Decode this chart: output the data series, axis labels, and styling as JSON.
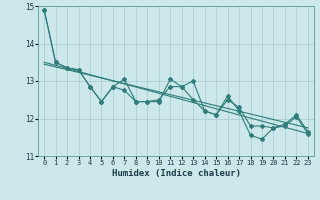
{
  "xlabel": "Humidex (Indice chaleur)",
  "xlim": [
    -0.5,
    23.5
  ],
  "ylim": [
    11,
    15
  ],
  "yticks": [
    11,
    12,
    13,
    14,
    15
  ],
  "xticks": [
    0,
    1,
    2,
    3,
    4,
    5,
    6,
    7,
    8,
    9,
    10,
    11,
    12,
    13,
    14,
    15,
    16,
    17,
    18,
    19,
    20,
    21,
    22,
    23
  ],
  "bg_color": "#cce8ea",
  "grid_color": "#aad0d4",
  "line_color": "#2e7d7a",
  "series1": [
    14.9,
    13.5,
    13.35,
    13.3,
    12.85,
    12.45,
    12.85,
    12.75,
    12.45,
    12.45,
    12.45,
    13.05,
    12.85,
    13.0,
    12.2,
    12.1,
    12.6,
    12.2,
    11.55,
    11.45,
    11.75,
    11.8,
    12.05,
    11.6
  ],
  "series2": [
    14.9,
    13.5,
    13.35,
    13.3,
    12.85,
    12.45,
    12.85,
    13.05,
    12.45,
    12.45,
    12.5,
    12.85,
    12.85,
    12.5,
    12.2,
    12.1,
    12.5,
    12.3,
    11.8,
    11.8,
    11.75,
    11.85,
    12.1,
    11.65
  ],
  "trend1_x": [
    0,
    23
  ],
  "trend1_y": [
    13.5,
    11.6
  ],
  "trend2_x": [
    0,
    23
  ],
  "trend2_y": [
    13.45,
    11.75
  ]
}
